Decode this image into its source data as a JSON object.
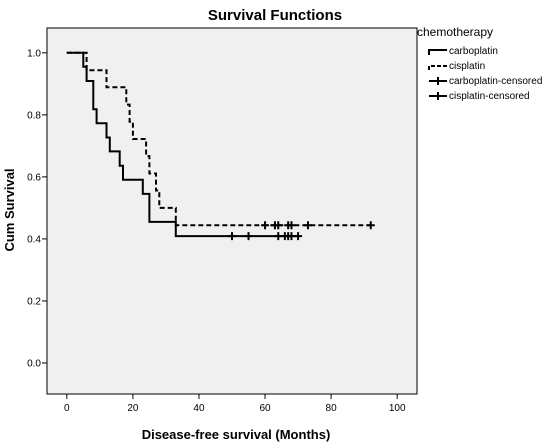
{
  "chart_data": {
    "type": "line",
    "title": "Survival Functions",
    "xlabel": "Disease-free survival (Months)",
    "ylabel": "Cum Survival",
    "xlim": [
      -6,
      106
    ],
    "ylim": [
      -0.1,
      1.08
    ],
    "xticks": [
      0,
      20,
      40,
      60,
      80,
      100
    ],
    "yticks": [
      0.0,
      0.2,
      0.4,
      0.6,
      0.8,
      1.0
    ],
    "xtick_labels": [
      "0",
      "20",
      "40",
      "60",
      "80",
      "100"
    ],
    "ytick_labels": [
      "0.0",
      "0.2",
      "0.4",
      "0.6",
      "0.8",
      "1.0"
    ],
    "grid": false,
    "legend": {
      "title": "chemotherapy",
      "placement": "outside-right",
      "entries": [
        "carboplatin",
        "cisplatin",
        "carboplatin-censored",
        "cisplatin-censored"
      ]
    },
    "series": [
      {
        "name": "carboplatin",
        "style": "solid",
        "step_points": [
          [
            0,
            1.0
          ],
          [
            5,
            0.955
          ],
          [
            6,
            0.909
          ],
          [
            8,
            0.818
          ],
          [
            9,
            0.773
          ],
          [
            12,
            0.727
          ],
          [
            13,
            0.682
          ],
          [
            16,
            0.636
          ],
          [
            17,
            0.591
          ],
          [
            23,
            0.545
          ],
          [
            25,
            0.455
          ],
          [
            33,
            0.409
          ],
          [
            70,
            0.409
          ]
        ],
        "censored_x": [
          50,
          55,
          64,
          66,
          67,
          68,
          70
        ],
        "censored_y": 0.409
      },
      {
        "name": "cisplatin",
        "style": "dashed",
        "step_points": [
          [
            0,
            1.0
          ],
          [
            6,
            0.944
          ],
          [
            12,
            0.889
          ],
          [
            18,
            0.833
          ],
          [
            19,
            0.778
          ],
          [
            20,
            0.722
          ],
          [
            24,
            0.667
          ],
          [
            25,
            0.611
          ],
          [
            27,
            0.556
          ],
          [
            28,
            0.5
          ],
          [
            33,
            0.444
          ],
          [
            92,
            0.444
          ]
        ],
        "censored_x": [
          60,
          63,
          64,
          67,
          68,
          73,
          92
        ],
        "censored_y": 0.444
      }
    ]
  },
  "colors": {
    "plot_background": "#f0f0f0",
    "line": "#000000"
  }
}
